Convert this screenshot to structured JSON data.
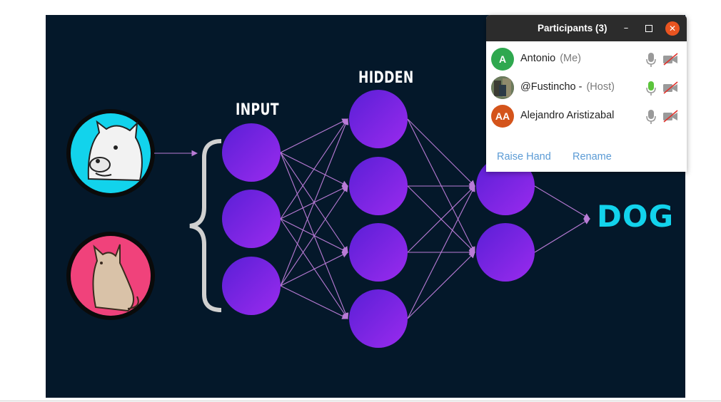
{
  "slide": {
    "input_label": "INPUT",
    "hidden_label": "HIDDEN",
    "output_label": "DOG",
    "colors": {
      "background": "#04182a",
      "node": "#7a25e0",
      "edge": "#b97bd6",
      "dog_circle": "#12d3ec",
      "cat_circle": "#f0427b",
      "dog_text": "#12d3ec"
    }
  },
  "participants": {
    "title": "Participants (3)",
    "minimize_icon": "minimize-icon",
    "maximize_icon": "maximize-icon",
    "close_icon": "close-icon",
    "list": [
      {
        "initials": "A",
        "name": "Antonio",
        "role": "(Me)",
        "avatar_color": "#2fa84f",
        "mic": "muted",
        "camera": "off"
      },
      {
        "initials": "",
        "name": "@Fustincho -",
        "role": "(Host)",
        "avatar_color": "#555555",
        "mic": "active",
        "camera": "off"
      },
      {
        "initials": "AA",
        "name": "Alejandro Aristizabal",
        "role": "",
        "avatar_color": "#d4541b",
        "mic": "muted",
        "camera": "off"
      }
    ],
    "raise_hand": "Raise Hand",
    "rename": "Rename"
  }
}
